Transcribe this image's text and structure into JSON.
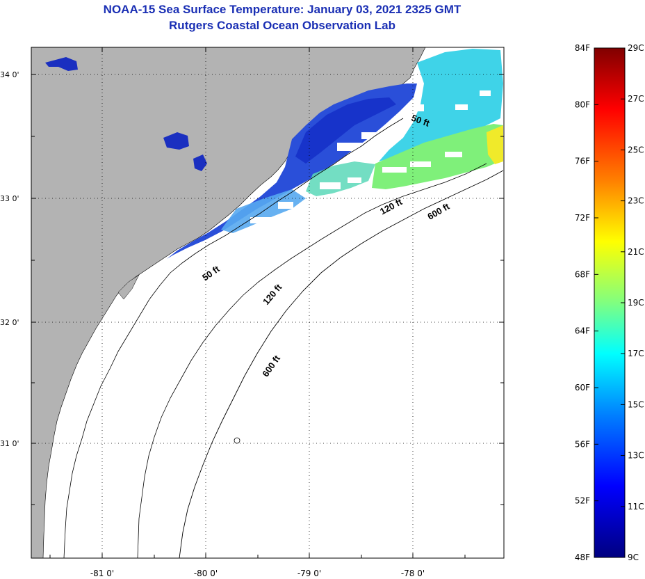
{
  "title": {
    "line1": "NOAA-15 Sea Surface Temperature:  January 03, 2021 2325 GMT",
    "line2": "Rutgers Coastal Ocean Observation Lab"
  },
  "map": {
    "lat_labels": [
      "34 0'",
      "33 0'",
      "32 0'",
      "31 0'"
    ],
    "lon_labels": [
      "-81 0'",
      "-80 0'",
      "-79 0'",
      "-78 0'"
    ],
    "contour_labels": {
      "c50_north": "50 ft",
      "c50_south": "50 ft",
      "c120_north": "120 ft",
      "c120_south": "120 ft",
      "c600_north": "600 ft",
      "c600_south": "600 ft"
    },
    "land_color": "#b3b3b3",
    "ocean_color": "#ffffff"
  },
  "colorbar": {
    "f_labels": [
      "84F",
      "80F",
      "76F",
      "72F",
      "68F",
      "64F",
      "60F",
      "56F",
      "52F",
      "48F"
    ],
    "c_labels": [
      "29C",
      "27C",
      "25C",
      "23C",
      "21C",
      "19C",
      "17C",
      "15C",
      "13C",
      "11C",
      "9C"
    ],
    "stops": [
      "#800000",
      "#ff0000",
      "#ff8000",
      "#ffff00",
      "#80ff80",
      "#00ffff",
      "#0080ff",
      "#0000ff",
      "#000080"
    ]
  }
}
